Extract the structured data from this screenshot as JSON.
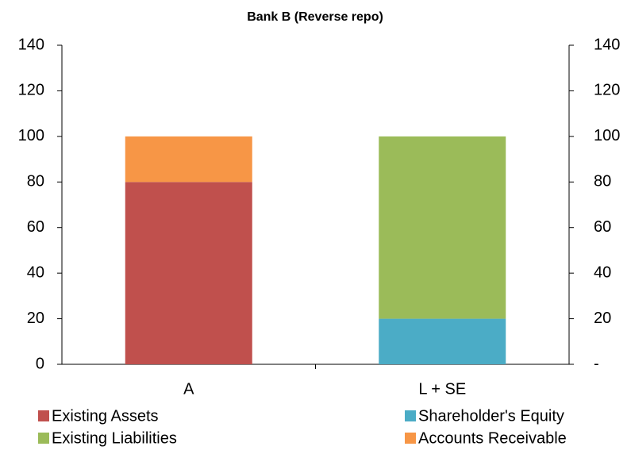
{
  "chart_data": {
    "type": "bar",
    "stacked": true,
    "title": "Bank B (Reverse repo)",
    "categories": [
      "A",
      "L + SE"
    ],
    "series": [
      {
        "name": "Existing Assets",
        "color": "#c0504d",
        "values": [
          80,
          null
        ]
      },
      {
        "name": "Shareholder's Equity",
        "color": "#4bacc6",
        "values": [
          null,
          20
        ]
      },
      {
        "name": "Existing Liabilities",
        "color": "#9bbb59",
        "values": [
          null,
          80
        ]
      },
      {
        "name": "Accounts Receivable",
        "color": "#f79646",
        "values": [
          20,
          null
        ]
      }
    ],
    "ylim": [
      0,
      140
    ],
    "yticks": [
      0,
      20,
      40,
      60,
      80,
      100,
      120,
      140
    ],
    "y2lim": [
      0,
      140
    ],
    "y2ticks": [
      {
        "value": 0,
        "label": "-"
      },
      20,
      40,
      60,
      80,
      100,
      120,
      140
    ],
    "grid": false
  }
}
